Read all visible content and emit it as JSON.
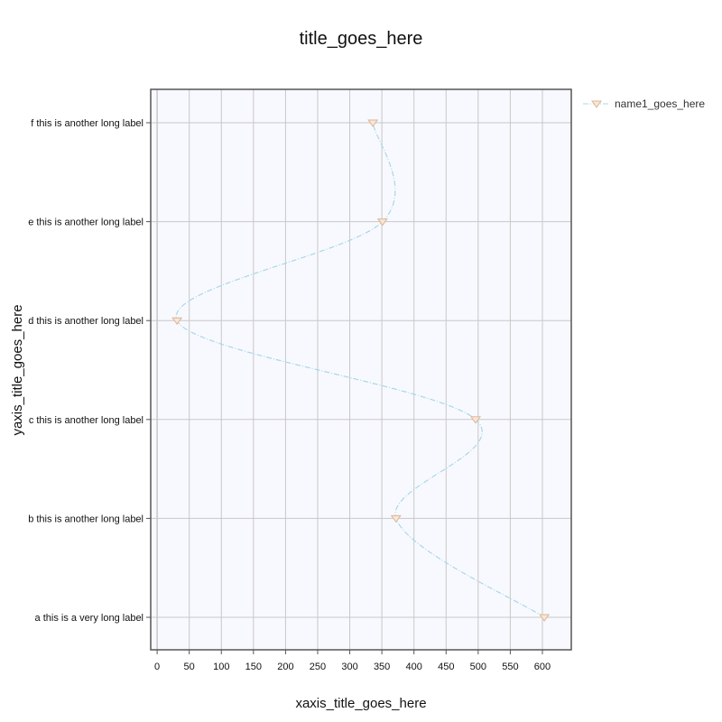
{
  "chart_data": {
    "type": "line",
    "orientation": "horizontal",
    "title": "title_goes_here",
    "xlabel": "xaxis_title_goes_here",
    "ylabel": "yaxis_title_goes_here",
    "categories": [
      "a this is a very long label",
      "b this is another long label",
      "c this is another long label",
      "d this is another long label",
      "e this is another long label",
      "f this is another long label"
    ],
    "xlim": [
      -10,
      645
    ],
    "xticks": [
      0,
      50,
      100,
      150,
      200,
      250,
      300,
      350,
      400,
      450,
      500,
      550,
      600
    ],
    "grid": true,
    "legend_position": "top-right",
    "series": [
      {
        "name": "name1_goes_here",
        "values": [
          603,
          372,
          496,
          31,
          351,
          336
        ],
        "line_color": "#a8d8e8",
        "marker_color": "#d9b896",
        "marker": "triangle-down",
        "smooth": true
      }
    ],
    "colors": {
      "plot_background": "#f8f9fe",
      "grid": "#c8c8c8",
      "frame": "#555555"
    }
  }
}
